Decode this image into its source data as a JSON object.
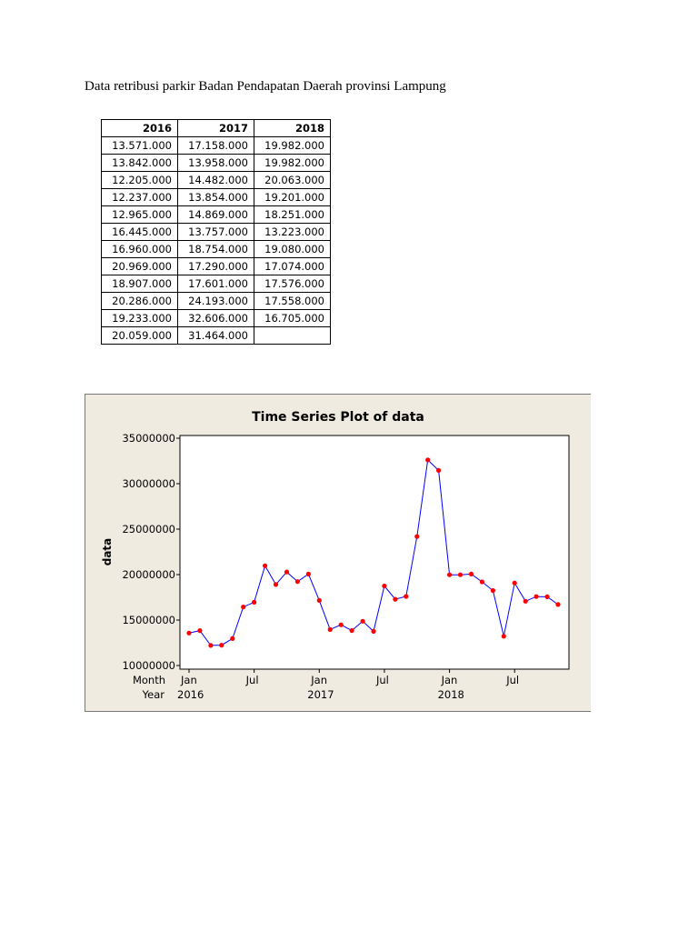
{
  "heading": "Data retribusi parkir Badan Pendapatan Daerah provinsi Lampung",
  "table": {
    "headers": [
      "2016",
      "2017",
      "2018"
    ],
    "rows": [
      [
        "13.571.000",
        "17.158.000",
        "19.982.000"
      ],
      [
        "13.842.000",
        "13.958.000",
        "19.982.000"
      ],
      [
        "12.205.000",
        "14.482.000",
        "20.063.000"
      ],
      [
        "12.237.000",
        "13.854.000",
        "19.201.000"
      ],
      [
        "12.965.000",
        "14.869.000",
        "18.251.000"
      ],
      [
        "16.445.000",
        "13.757.000",
        "13.223.000"
      ],
      [
        "16.960.000",
        "18.754.000",
        "19.080.000"
      ],
      [
        "20.969.000",
        "17.290.000",
        "17.074.000"
      ],
      [
        "18.907.000",
        "17.601.000",
        "17.576.000"
      ],
      [
        "20.286.000",
        "24.193.000",
        "17.558.000"
      ],
      [
        "19.233.000",
        "32.606.000",
        "16.705.000"
      ],
      [
        "20.059.000",
        "31.464.000",
        ""
      ]
    ]
  },
  "chart_data": {
    "type": "line",
    "title": "Time Series Plot of data",
    "xlabel": "",
    "ylabel": "data",
    "ylim": [
      10000000,
      35000000
    ],
    "yticks": [
      10000000,
      15000000,
      20000000,
      25000000,
      30000000,
      35000000
    ],
    "ytick_labels": [
      "10000000",
      "15000000",
      "20000000",
      "25000000",
      "30000000",
      "35000000"
    ],
    "x_row_labels": {
      "month": "Month",
      "year": "Year"
    },
    "xticks": [
      {
        "index": 1,
        "month": "Jan",
        "year": "2016"
      },
      {
        "index": 7,
        "month": "Jul",
        "year": ""
      },
      {
        "index": 13,
        "month": "Jan",
        "year": "2017"
      },
      {
        "index": 19,
        "month": "Jul",
        "year": ""
      },
      {
        "index": 25,
        "month": "Jan",
        "year": "2018"
      },
      {
        "index": 31,
        "month": "Jul",
        "year": ""
      }
    ],
    "x": [
      1,
      2,
      3,
      4,
      5,
      6,
      7,
      8,
      9,
      10,
      11,
      12,
      13,
      14,
      15,
      16,
      17,
      18,
      19,
      20,
      21,
      22,
      23,
      24,
      25,
      26,
      27,
      28,
      29,
      30,
      31,
      32,
      33,
      34,
      35
    ],
    "values": [
      13571000,
      13842000,
      12205000,
      12237000,
      12965000,
      16445000,
      16960000,
      20969000,
      18907000,
      20286000,
      19233000,
      20059000,
      17158000,
      13958000,
      14482000,
      13854000,
      14869000,
      13757000,
      18754000,
      17290000,
      17601000,
      24193000,
      32606000,
      31464000,
      19982000,
      19982000,
      20063000,
      19201000,
      18251000,
      13223000,
      19080000,
      17074000,
      17576000,
      17558000,
      16705000
    ],
    "line_color": "#0000ff",
    "marker_color": "#ff0000",
    "grid": false
  }
}
